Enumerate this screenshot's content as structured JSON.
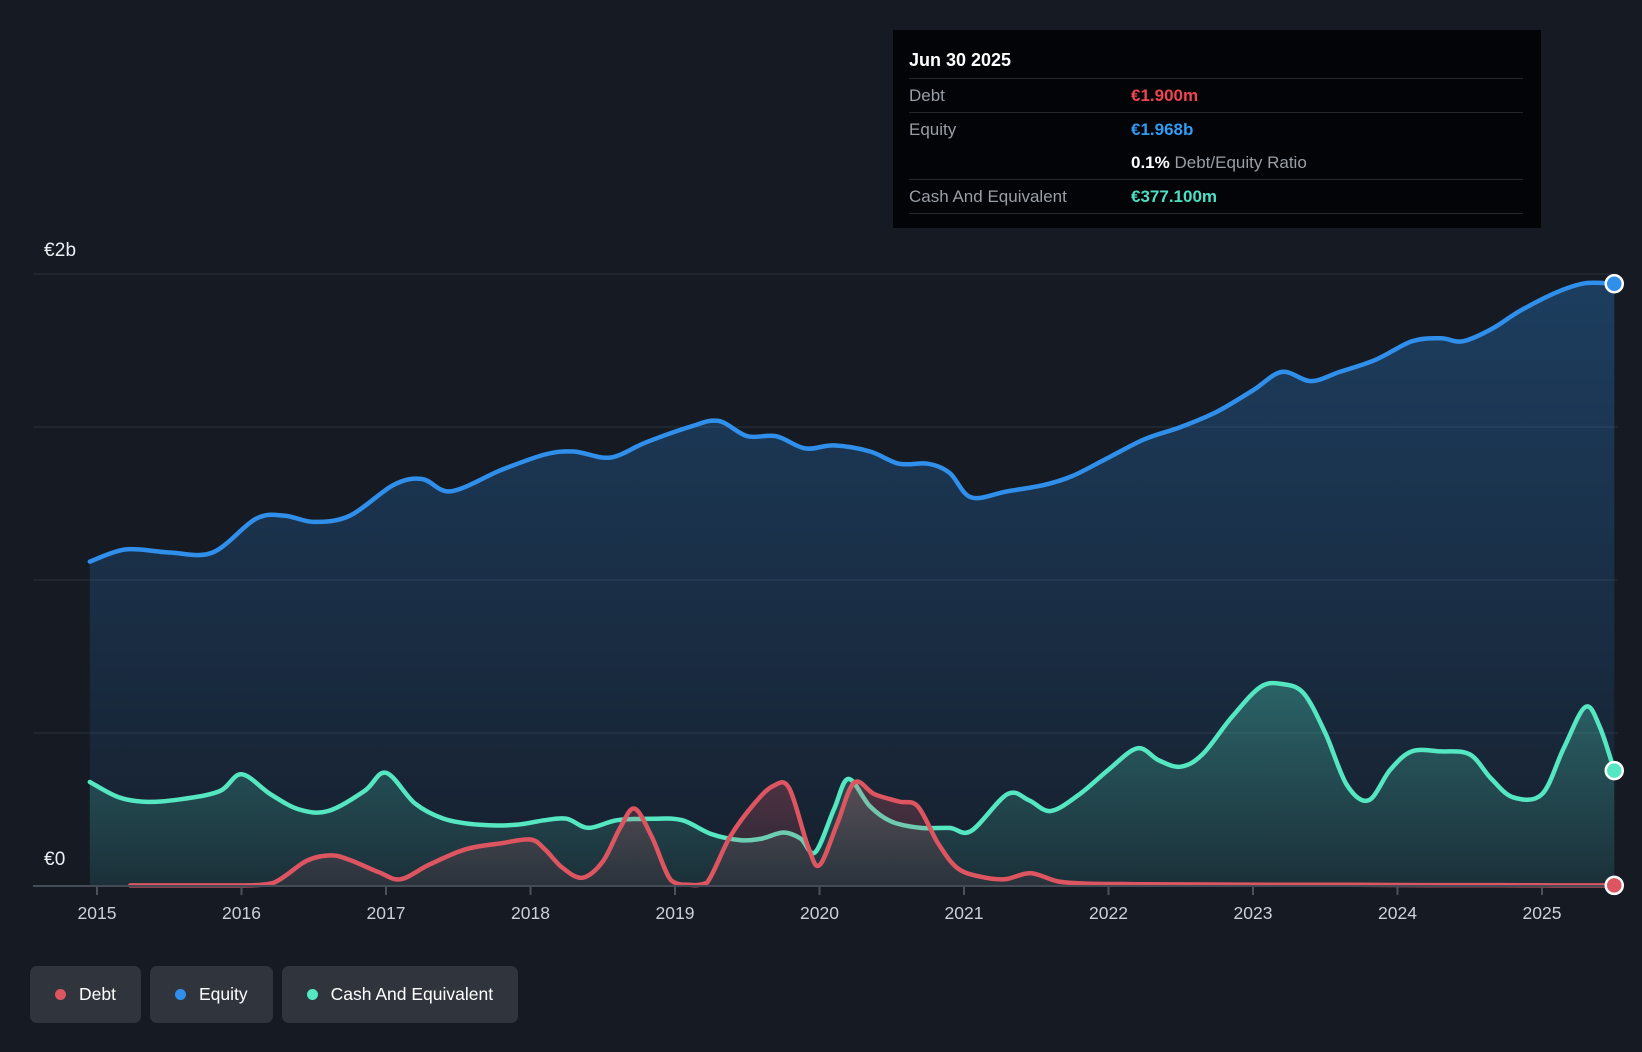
{
  "tooltip": {
    "date": "Jun 30 2025",
    "rows": [
      {
        "label": "Debt",
        "value": "€1.900m",
        "color_key": "debt_text"
      },
      {
        "label": "Equity",
        "value": "€1.968b",
        "color_key": "equity_text"
      },
      {
        "label": "Cash And Equivalent",
        "value": "€377.100m",
        "color_key": "cash_text"
      }
    ],
    "ratio_value": "0.1%",
    "ratio_label": "Debt/Equity Ratio"
  },
  "axis": {
    "y_labels": [
      {
        "text": "€2b",
        "value_b": 2.0
      },
      {
        "text": "€0",
        "value_b": 0.0
      }
    ],
    "years": [
      "2015",
      "2016",
      "2017",
      "2018",
      "2019",
      "2020",
      "2021",
      "2022",
      "2023",
      "2024",
      "2025"
    ]
  },
  "legend": [
    {
      "label": "Debt",
      "color_key": "debt_line"
    },
    {
      "label": "Equity",
      "color_key": "equity_line"
    },
    {
      "label": "Cash And Equivalent",
      "color_key": "cash_line"
    }
  ],
  "colors": {
    "background": "#151a23",
    "debt_line": "#dd5560",
    "debt_text": "#ef4550",
    "equity_line": "#2f8fea",
    "equity_text": "#2f9bf4",
    "cash_line": "#55e6c2",
    "cash_text": "#4be0c3",
    "grid": "rgba(175,195,220,0.14)",
    "axis_line": "#434b57",
    "tick": "#4a525d"
  },
  "chart_data": {
    "type": "area",
    "title": "Debt to Equity History and Analysis",
    "x_unit": "decimal_year",
    "x_range": [
      2014.95,
      2025.5
    ],
    "ylim_b": [
      0,
      2.1
    ],
    "currency": "EUR",
    "value_unit": "billions EUR",
    "y_gridlines_b": [
      2.0,
      1.5,
      1.0,
      0.5
    ],
    "legend_position": "bottom-left",
    "draw_order": [
      "Equity",
      "Cash And Equivalent",
      "Debt"
    ],
    "end_markers": true,
    "series": [
      {
        "name": "Equity",
        "color_key": "equity_line",
        "end_value_label": "€1.968b",
        "points": [
          [
            2014.95,
            1.06
          ],
          [
            2015.2,
            1.1
          ],
          [
            2015.5,
            1.09
          ],
          [
            2015.8,
            1.09
          ],
          [
            2016.1,
            1.2
          ],
          [
            2016.3,
            1.21
          ],
          [
            2016.5,
            1.19
          ],
          [
            2016.75,
            1.21
          ],
          [
            2017.05,
            1.31
          ],
          [
            2017.25,
            1.33
          ],
          [
            2017.45,
            1.29
          ],
          [
            2017.8,
            1.36
          ],
          [
            2018.1,
            1.41
          ],
          [
            2018.3,
            1.42
          ],
          [
            2018.55,
            1.4
          ],
          [
            2018.8,
            1.45
          ],
          [
            2019.1,
            1.5
          ],
          [
            2019.3,
            1.52
          ],
          [
            2019.5,
            1.47
          ],
          [
            2019.7,
            1.47
          ],
          [
            2019.9,
            1.43
          ],
          [
            2020.1,
            1.44
          ],
          [
            2020.35,
            1.42
          ],
          [
            2020.55,
            1.38
          ],
          [
            2020.75,
            1.38
          ],
          [
            2020.9,
            1.35
          ],
          [
            2021.05,
            1.27
          ],
          [
            2021.3,
            1.29
          ],
          [
            2021.55,
            1.31
          ],
          [
            2021.75,
            1.34
          ],
          [
            2022.0,
            1.4
          ],
          [
            2022.25,
            1.46
          ],
          [
            2022.5,
            1.5
          ],
          [
            2022.75,
            1.55
          ],
          [
            2023.0,
            1.62
          ],
          [
            2023.2,
            1.68
          ],
          [
            2023.4,
            1.65
          ],
          [
            2023.6,
            1.68
          ],
          [
            2023.85,
            1.72
          ],
          [
            2024.1,
            1.78
          ],
          [
            2024.3,
            1.79
          ],
          [
            2024.45,
            1.78
          ],
          [
            2024.65,
            1.82
          ],
          [
            2024.85,
            1.88
          ],
          [
            2025.1,
            1.94
          ],
          [
            2025.3,
            1.97
          ],
          [
            2025.5,
            1.968
          ]
        ]
      },
      {
        "name": "Cash And Equivalent",
        "color_key": "cash_line",
        "end_value_label": "€377.100m",
        "points": [
          [
            2014.95,
            0.34
          ],
          [
            2015.15,
            0.29
          ],
          [
            2015.35,
            0.275
          ],
          [
            2015.6,
            0.285
          ],
          [
            2015.85,
            0.31
          ],
          [
            2016.0,
            0.365
          ],
          [
            2016.2,
            0.3
          ],
          [
            2016.4,
            0.25
          ],
          [
            2016.6,
            0.245
          ],
          [
            2016.85,
            0.31
          ],
          [
            2017.0,
            0.37
          ],
          [
            2017.2,
            0.27
          ],
          [
            2017.4,
            0.22
          ],
          [
            2017.65,
            0.2
          ],
          [
            2017.9,
            0.2
          ],
          [
            2018.1,
            0.215
          ],
          [
            2018.25,
            0.22
          ],
          [
            2018.4,
            0.19
          ],
          [
            2018.6,
            0.215
          ],
          [
            2018.85,
            0.22
          ],
          [
            2019.05,
            0.215
          ],
          [
            2019.25,
            0.17
          ],
          [
            2019.45,
            0.15
          ],
          [
            2019.6,
            0.155
          ],
          [
            2019.75,
            0.175
          ],
          [
            2019.87,
            0.155
          ],
          [
            2019.97,
            0.11
          ],
          [
            2020.1,
            0.25
          ],
          [
            2020.2,
            0.35
          ],
          [
            2020.35,
            0.26
          ],
          [
            2020.5,
            0.21
          ],
          [
            2020.7,
            0.19
          ],
          [
            2020.9,
            0.19
          ],
          [
            2021.05,
            0.18
          ],
          [
            2021.3,
            0.3
          ],
          [
            2021.45,
            0.28
          ],
          [
            2021.6,
            0.245
          ],
          [
            2021.8,
            0.3
          ],
          [
            2022.0,
            0.38
          ],
          [
            2022.2,
            0.45
          ],
          [
            2022.35,
            0.41
          ],
          [
            2022.5,
            0.39
          ],
          [
            2022.65,
            0.43
          ],
          [
            2022.85,
            0.55
          ],
          [
            2023.05,
            0.65
          ],
          [
            2023.2,
            0.66
          ],
          [
            2023.35,
            0.63
          ],
          [
            2023.5,
            0.5
          ],
          [
            2023.65,
            0.33
          ],
          [
            2023.8,
            0.28
          ],
          [
            2023.95,
            0.38
          ],
          [
            2024.1,
            0.44
          ],
          [
            2024.3,
            0.44
          ],
          [
            2024.5,
            0.43
          ],
          [
            2024.65,
            0.35
          ],
          [
            2024.8,
            0.29
          ],
          [
            2025.0,
            0.3
          ],
          [
            2025.15,
            0.45
          ],
          [
            2025.3,
            0.585
          ],
          [
            2025.4,
            0.52
          ],
          [
            2025.5,
            0.3771
          ]
        ]
      },
      {
        "name": "Debt",
        "color_key": "debt_line",
        "end_value_label": "€1.900m",
        "points": [
          [
            2015.23,
            0.002
          ],
          [
            2015.6,
            0.002
          ],
          [
            2016.0,
            0.002
          ],
          [
            2016.22,
            0.01
          ],
          [
            2016.45,
            0.082
          ],
          [
            2016.62,
            0.1
          ],
          [
            2016.75,
            0.085
          ],
          [
            2016.95,
            0.045
          ],
          [
            2017.1,
            0.022
          ],
          [
            2017.3,
            0.07
          ],
          [
            2017.55,
            0.12
          ],
          [
            2017.8,
            0.14
          ],
          [
            2018.0,
            0.152
          ],
          [
            2018.1,
            0.12
          ],
          [
            2018.22,
            0.06
          ],
          [
            2018.36,
            0.027
          ],
          [
            2018.5,
            0.08
          ],
          [
            2018.62,
            0.19
          ],
          [
            2018.72,
            0.253
          ],
          [
            2018.84,
            0.16
          ],
          [
            2018.97,
            0.02
          ],
          [
            2019.1,
            0.004
          ],
          [
            2019.22,
            0.01
          ],
          [
            2019.38,
            0.16
          ],
          [
            2019.55,
            0.27
          ],
          [
            2019.68,
            0.327
          ],
          [
            2019.79,
            0.32
          ],
          [
            2019.92,
            0.13
          ],
          [
            2020.0,
            0.068
          ],
          [
            2020.12,
            0.2
          ],
          [
            2020.24,
            0.338
          ],
          [
            2020.38,
            0.3
          ],
          [
            2020.55,
            0.276
          ],
          [
            2020.68,
            0.26
          ],
          [
            2020.82,
            0.14
          ],
          [
            2020.95,
            0.06
          ],
          [
            2021.1,
            0.032
          ],
          [
            2021.28,
            0.022
          ],
          [
            2021.46,
            0.042
          ],
          [
            2021.65,
            0.015
          ],
          [
            2021.85,
            0.008
          ],
          [
            2022.2,
            0.006
          ],
          [
            2022.7,
            0.005
          ],
          [
            2023.2,
            0.004
          ],
          [
            2023.7,
            0.004
          ],
          [
            2024.2,
            0.003
          ],
          [
            2024.7,
            0.003
          ],
          [
            2025.1,
            0.002
          ],
          [
            2025.5,
            0.0019
          ]
        ]
      }
    ]
  }
}
